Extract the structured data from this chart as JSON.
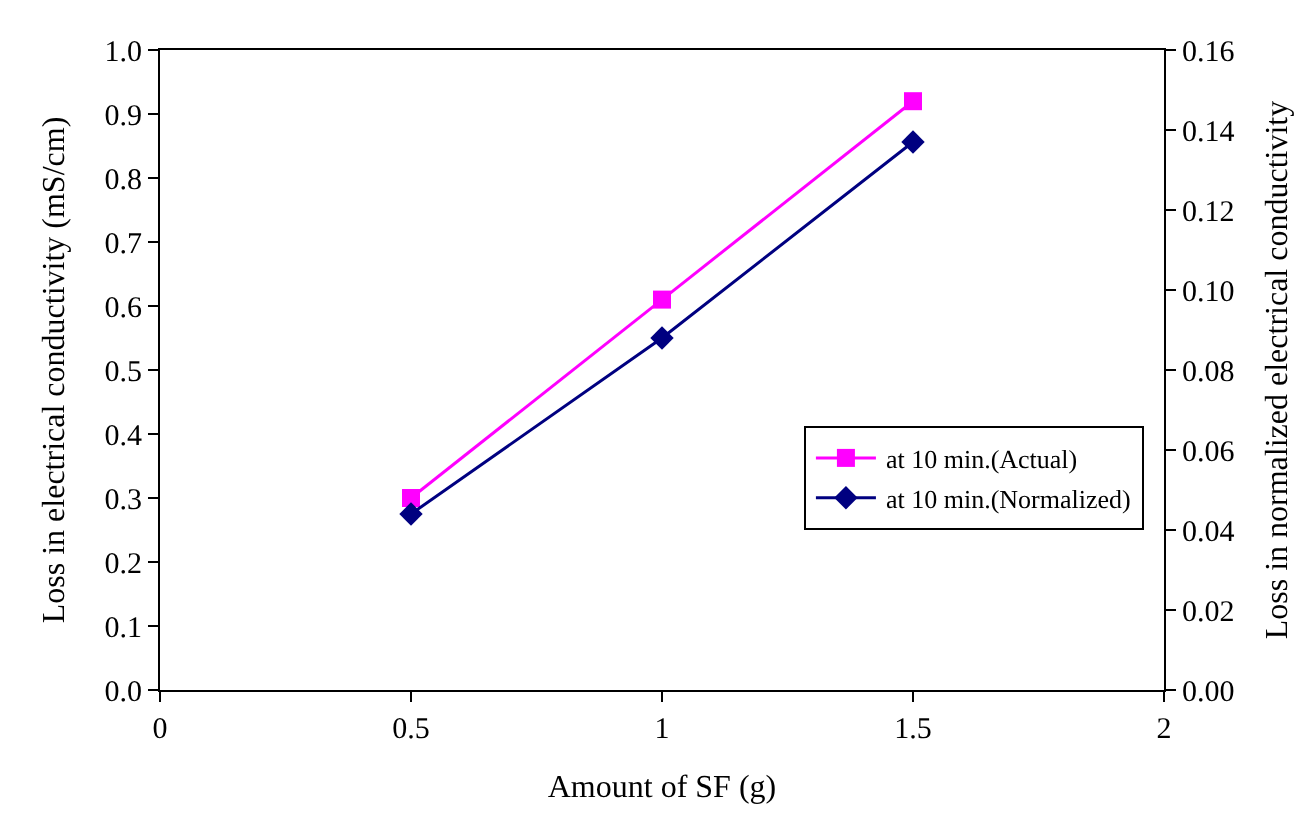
{
  "chart_data": {
    "type": "line",
    "xlabel": "Amount of SF (g)",
    "ylabel": "Loss in electrical conductivity (mS/cm)",
    "y2label": "Loss in normalized electrical conductivity",
    "x": [
      0.5,
      1,
      1.5
    ],
    "series": [
      {
        "name": "at 10 min.(Actual)",
        "color": "#ff00ff",
        "marker": "square",
        "values": [
          0.3,
          0.61,
          0.92
        ]
      },
      {
        "name": "at 10 min.(Normalized)",
        "color": "#000080",
        "marker": "diamond",
        "axis": "y2",
        "values": [
          0.044,
          0.088,
          0.137
        ]
      }
    ],
    "xlim": [
      0,
      2
    ],
    "xticks": [
      0,
      0.5,
      1,
      1.5,
      2
    ],
    "ylim": [
      0,
      1
    ],
    "yticks": [
      {
        "value": 0,
        "label": "0.0"
      },
      0.1,
      0.2,
      0.3,
      0.4,
      0.5,
      0.6,
      0.7,
      0.8,
      0.9,
      {
        "value": 1,
        "label": "1.0"
      }
    ],
    "y2lim": [
      0,
      0.16
    ],
    "y2ticks": [
      {
        "value": 0,
        "label": "0.00"
      },
      {
        "value": 0.02,
        "label": "0.02"
      },
      {
        "value": 0.04,
        "label": "0.04"
      },
      {
        "value": 0.06,
        "label": "0.06"
      },
      {
        "value": 0.08,
        "label": "0.08"
      },
      {
        "value": 0.1,
        "label": "0.10"
      },
      {
        "value": 0.12,
        "label": "0.12"
      },
      {
        "value": 0.14,
        "label": "0.14"
      },
      {
        "value": 0.16,
        "label": "0.16"
      }
    ],
    "legend": "bottom right",
    "line_style": "solid"
  }
}
